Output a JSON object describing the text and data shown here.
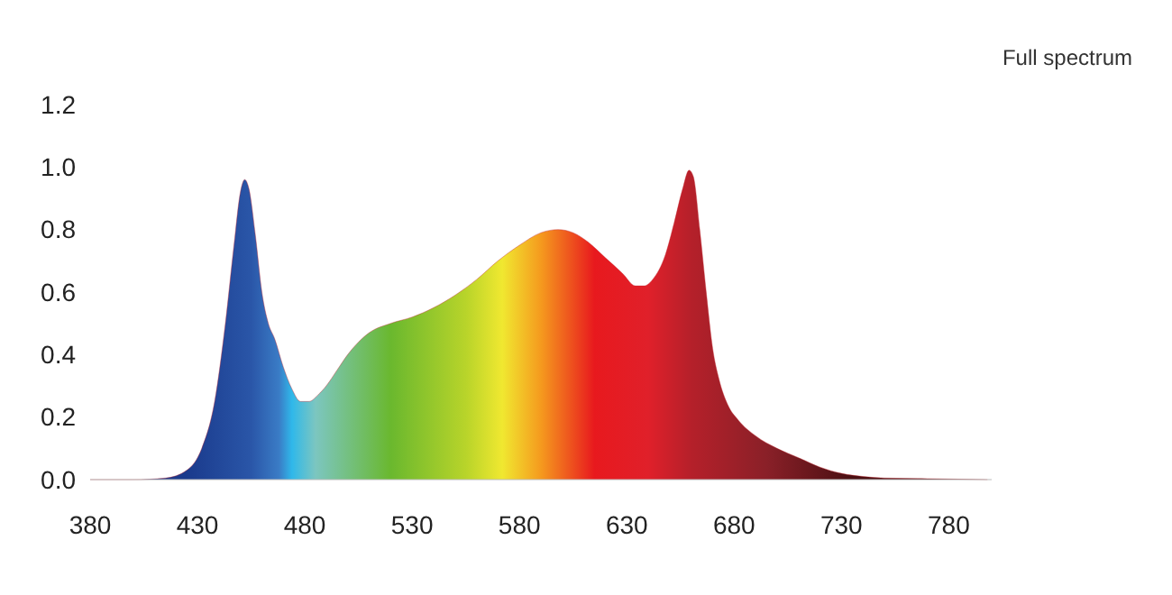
{
  "chart_data": {
    "type": "area",
    "title": "Full spectrum",
    "x": [
      380,
      400,
      415,
      425,
      432,
      438,
      443,
      447,
      450,
      452,
      454,
      457,
      460,
      463,
      466,
      470,
      474,
      478,
      482,
      486,
      490,
      495,
      500,
      505,
      510,
      520,
      530,
      540,
      550,
      560,
      570,
      580,
      590,
      598,
      605,
      612,
      620,
      628,
      634,
      638,
      642,
      648,
      652,
      656,
      659,
      661,
      664,
      667,
      670,
      673,
      677,
      682,
      690,
      700,
      710,
      720,
      730,
      740,
      750,
      770,
      798
    ],
    "series": [
      {
        "color": "#c0202a",
        "values": [
          0,
          0,
          0.005,
          0.03,
          0.1,
          0.25,
          0.5,
          0.75,
          0.92,
          0.96,
          0.93,
          0.78,
          0.6,
          0.5,
          0.45,
          0.36,
          0.29,
          0.25,
          0.25,
          0.27,
          0.3,
          0.35,
          0.4,
          0.44,
          0.47,
          0.5,
          0.52,
          0.55,
          0.59,
          0.64,
          0.7,
          0.75,
          0.79,
          0.8,
          0.79,
          0.76,
          0.71,
          0.66,
          0.62,
          0.62,
          0.64,
          0.72,
          0.82,
          0.93,
          0.99,
          0.97,
          0.8,
          0.6,
          0.42,
          0.32,
          0.24,
          0.19,
          0.14,
          0.1,
          0.07,
          0.04,
          0.02,
          0.01,
          0.005,
          0.003,
          0
        ]
      }
    ],
    "xlim": [
      380,
      800
    ],
    "ylim": [
      0,
      1.2
    ],
    "xticks": [
      380,
      430,
      480,
      530,
      580,
      630,
      680,
      730,
      780
    ],
    "yticks": [
      {
        "value": 0,
        "label": "0.0"
      },
      0.2,
      0.4,
      0.6,
      0.8,
      {
        "value": 1,
        "label": "1.0"
      },
      1.2
    ],
    "grid": false
  }
}
